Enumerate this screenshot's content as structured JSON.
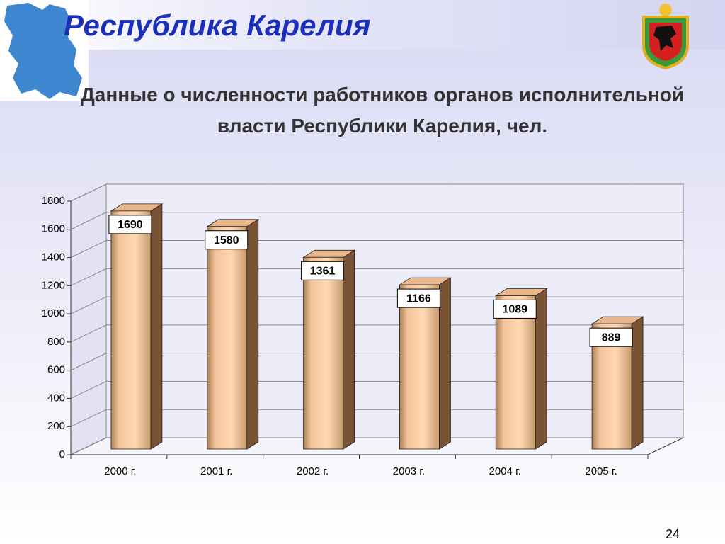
{
  "header": {
    "title": "Республика Карелия"
  },
  "page_number": 24,
  "chart_data": {
    "type": "bar3d",
    "title": "Данные о численности работников органов исполнительной власти Республики Карелия, чел.",
    "categories": [
      "2000 г.",
      "2001 г.",
      "2002 г.",
      "2003 г.",
      "2004 г.",
      "2005 г."
    ],
    "values": [
      1690,
      1580,
      1361,
      1166,
      1089,
      889
    ],
    "color": "#f4c49a",
    "ylim": [
      0,
      1800
    ],
    "yticks": [
      0,
      200,
      400,
      600,
      800,
      1000,
      1200,
      1400,
      1600,
      1800
    ],
    "grid": true
  }
}
